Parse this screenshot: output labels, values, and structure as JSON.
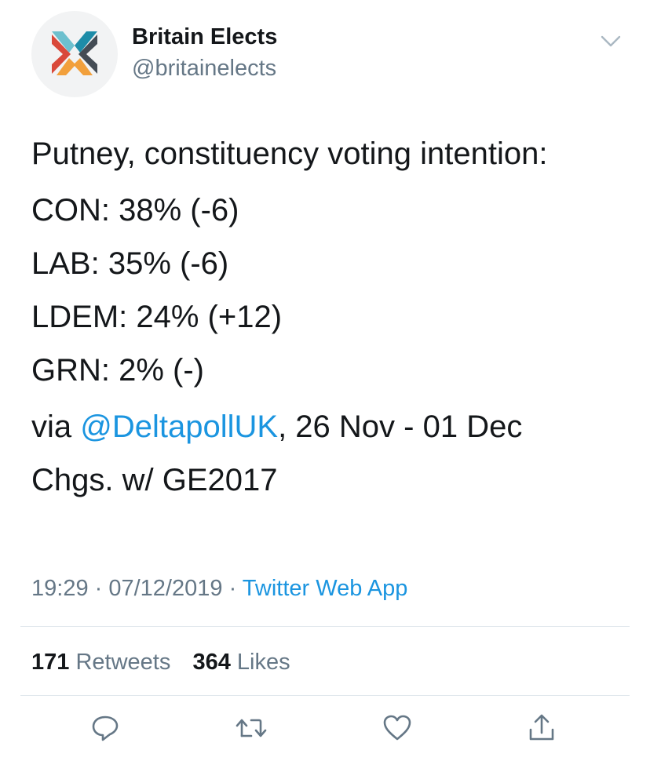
{
  "author": {
    "display_name": "Britain Elects",
    "handle": "@britainelects",
    "avatar_icon": "britain-elects-logo-icon"
  },
  "tweet": {
    "headline": "Putney, constituency voting intention:",
    "results": [
      "CON: 38% (-6)",
      "LAB: 35% (-6)",
      "LDEM: 24% (+12)",
      "GRN: 2% (-)"
    ],
    "via_prefix": "via ",
    "mention": "@DeltapollUK",
    "via_suffix": ", 26 Nov - 01 Dec",
    "changes_note": "Chgs. w/ GE2017"
  },
  "meta": {
    "time": "19:29",
    "separator1": " · ",
    "date": "07/12/2019",
    "separator2": " · ",
    "source": "Twitter Web App"
  },
  "stats": {
    "retweets_count": "171",
    "retweets_label": "Retweets",
    "likes_count": "364",
    "likes_label": "Likes"
  },
  "actions": {
    "reply_icon": "reply-icon",
    "retweet_icon": "retweet-icon",
    "like_icon": "like-icon",
    "share_icon": "share-icon"
  },
  "colors": {
    "link": "#1b95e0",
    "muted": "#657786",
    "text": "#14171a",
    "divider": "#e1e8ed"
  }
}
